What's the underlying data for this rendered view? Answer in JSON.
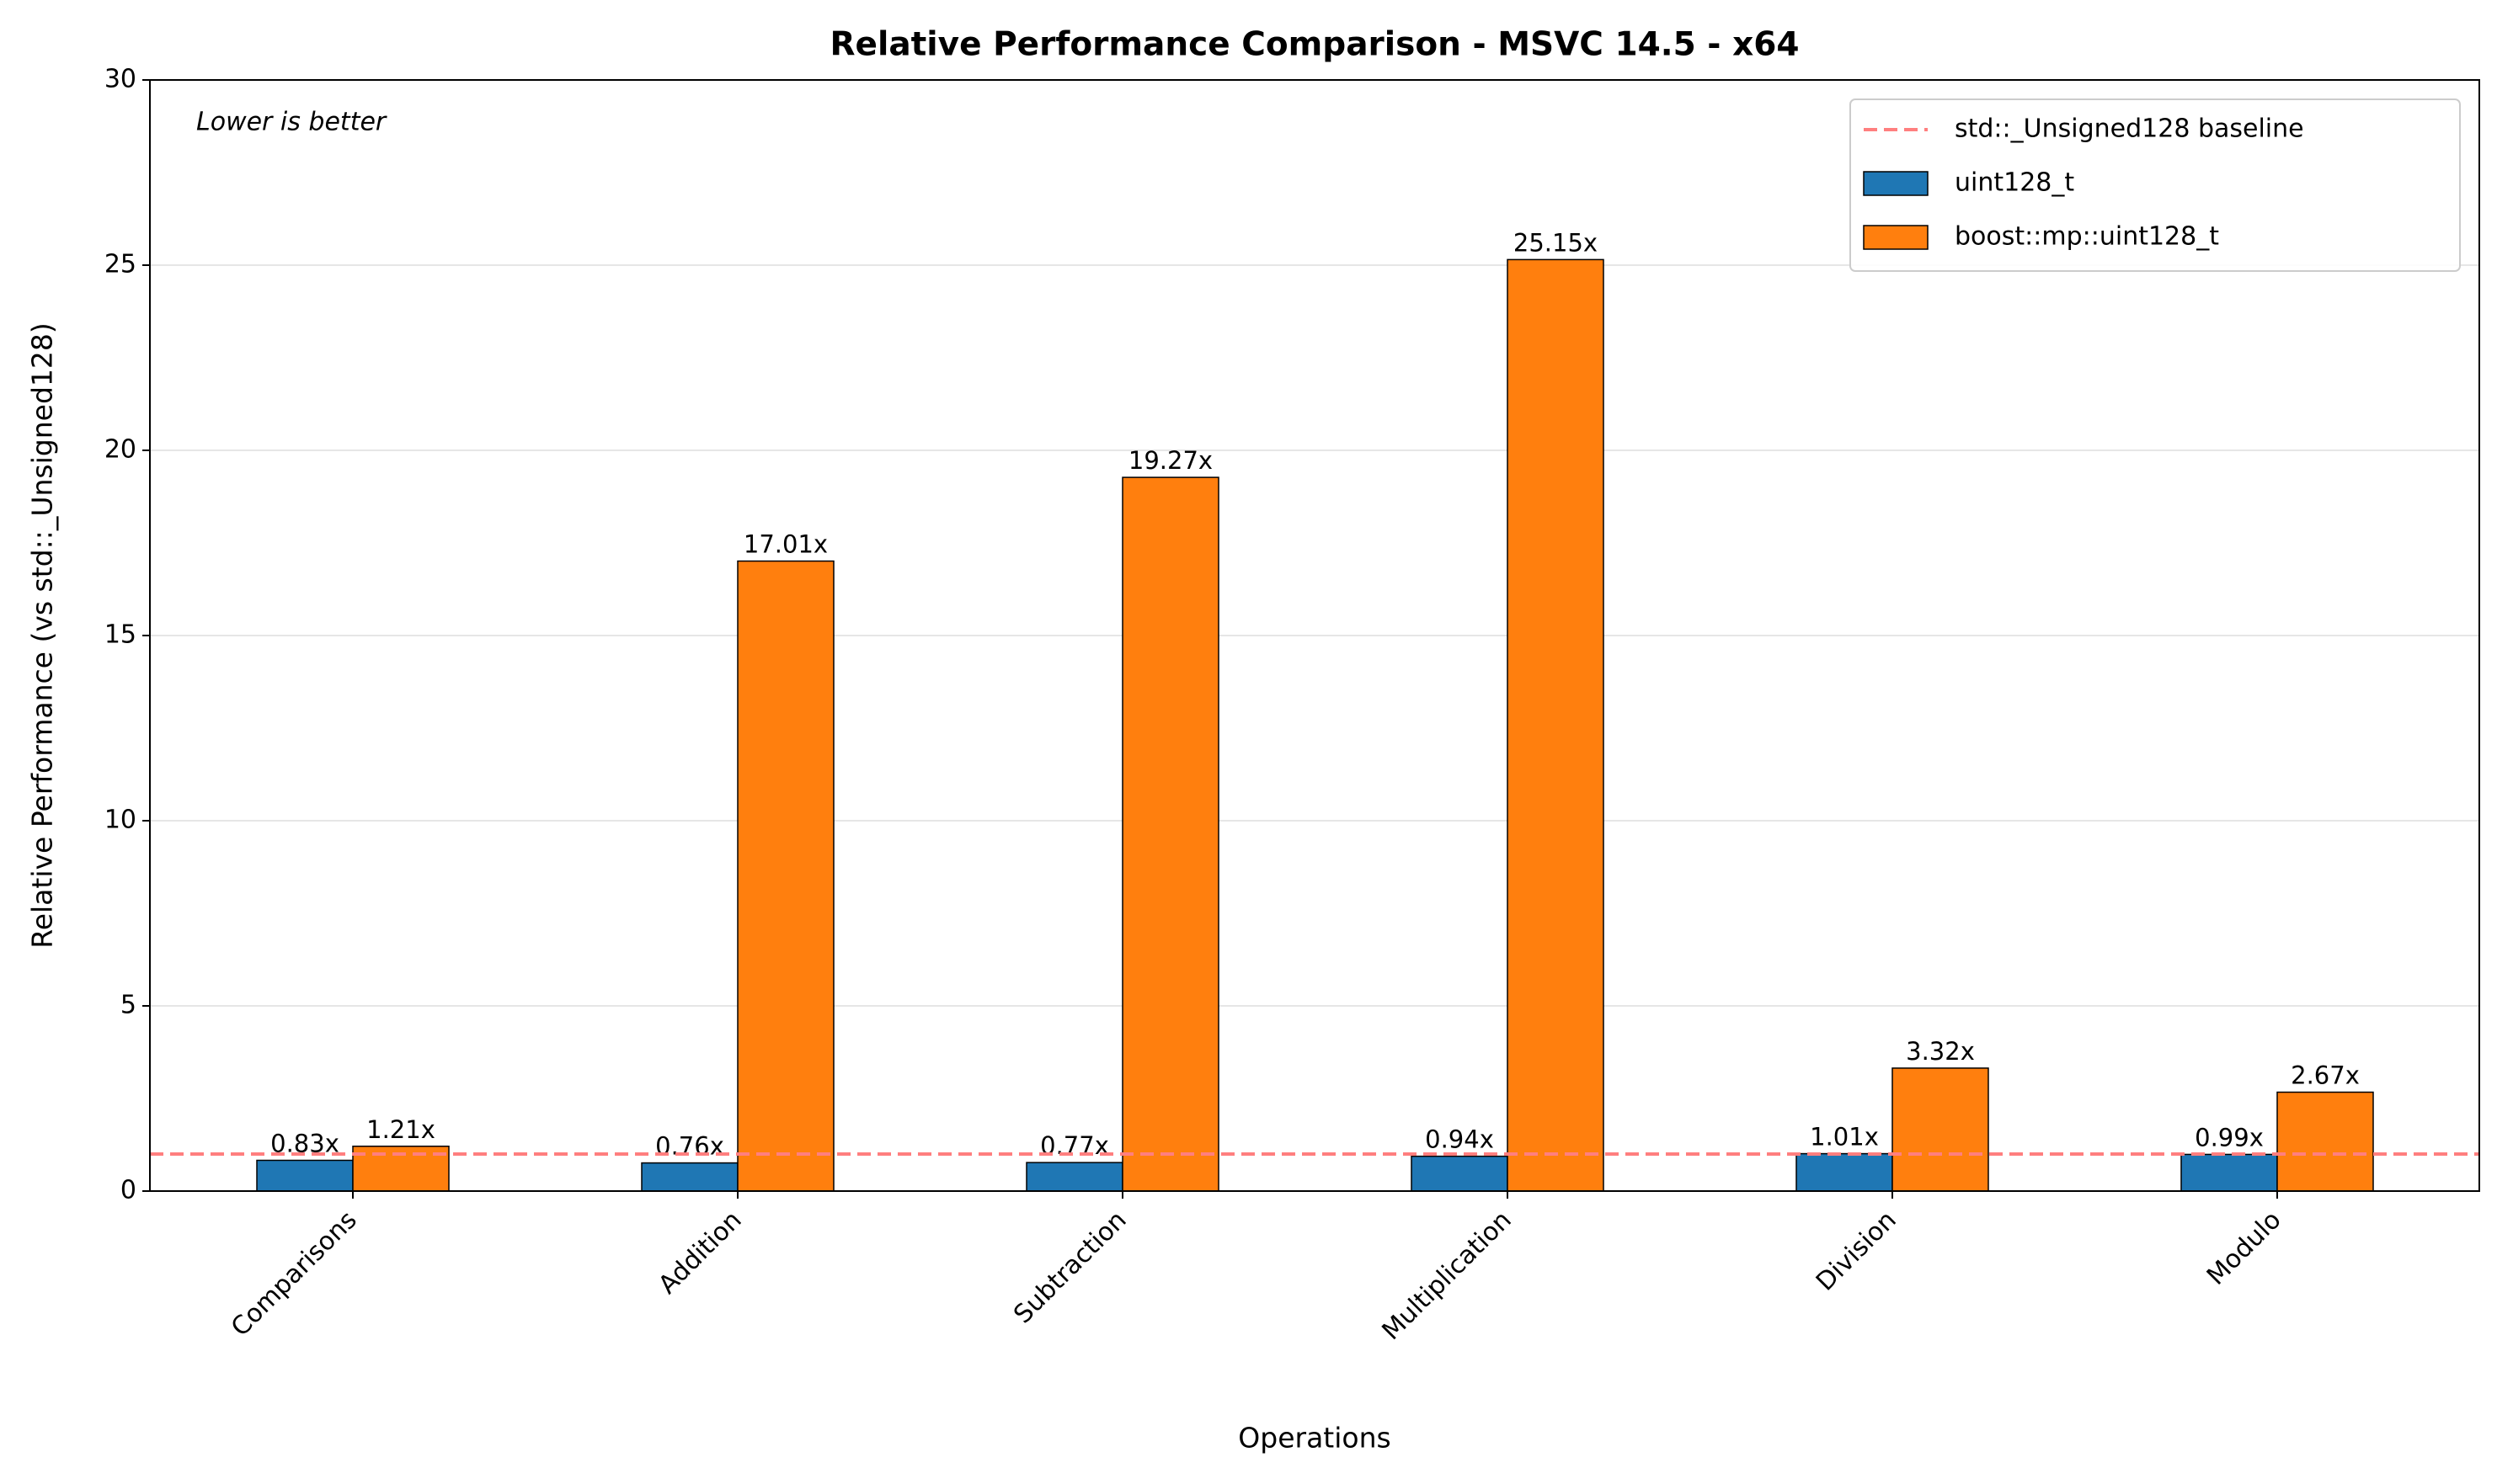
{
  "chart_data": {
    "type": "bar",
    "title": "Relative Performance Comparison - MSVC 14.5 - x64",
    "annotation": "Lower is better",
    "x_label": "Operations",
    "y_label": "Relative Performance (vs std::_Unsigned128)",
    "categories": [
      "Comparisons",
      "Addition",
      "Subtraction",
      "Multiplication",
      "Division",
      "Modulo"
    ],
    "series": [
      {
        "name": "uint128_t",
        "color": "#1f77b4",
        "values": [
          0.83,
          0.76,
          0.77,
          0.94,
          1.01,
          0.99
        ],
        "value_labels": [
          "0.83x",
          "0.76x",
          "0.77x",
          "0.94x",
          "1.01x",
          "0.99x"
        ]
      },
      {
        "name": "boost::mp::uint128_t",
        "color": "#ff7f0e",
        "values": [
          1.21,
          17.01,
          19.27,
          25.15,
          3.32,
          2.67
        ],
        "value_labels": [
          "1.21x",
          "17.01x",
          "19.27x",
          "25.15x",
          "3.32x",
          "2.67x"
        ]
      }
    ],
    "reference_line": {
      "name": "std::_Unsigned128 baseline",
      "value": 1,
      "color": "#ff7f7f"
    },
    "ylim": [
      0,
      30
    ],
    "yticks": [
      0,
      5,
      10,
      15,
      20,
      25,
      30
    ],
    "grid": true,
    "legend": "upper right"
  }
}
